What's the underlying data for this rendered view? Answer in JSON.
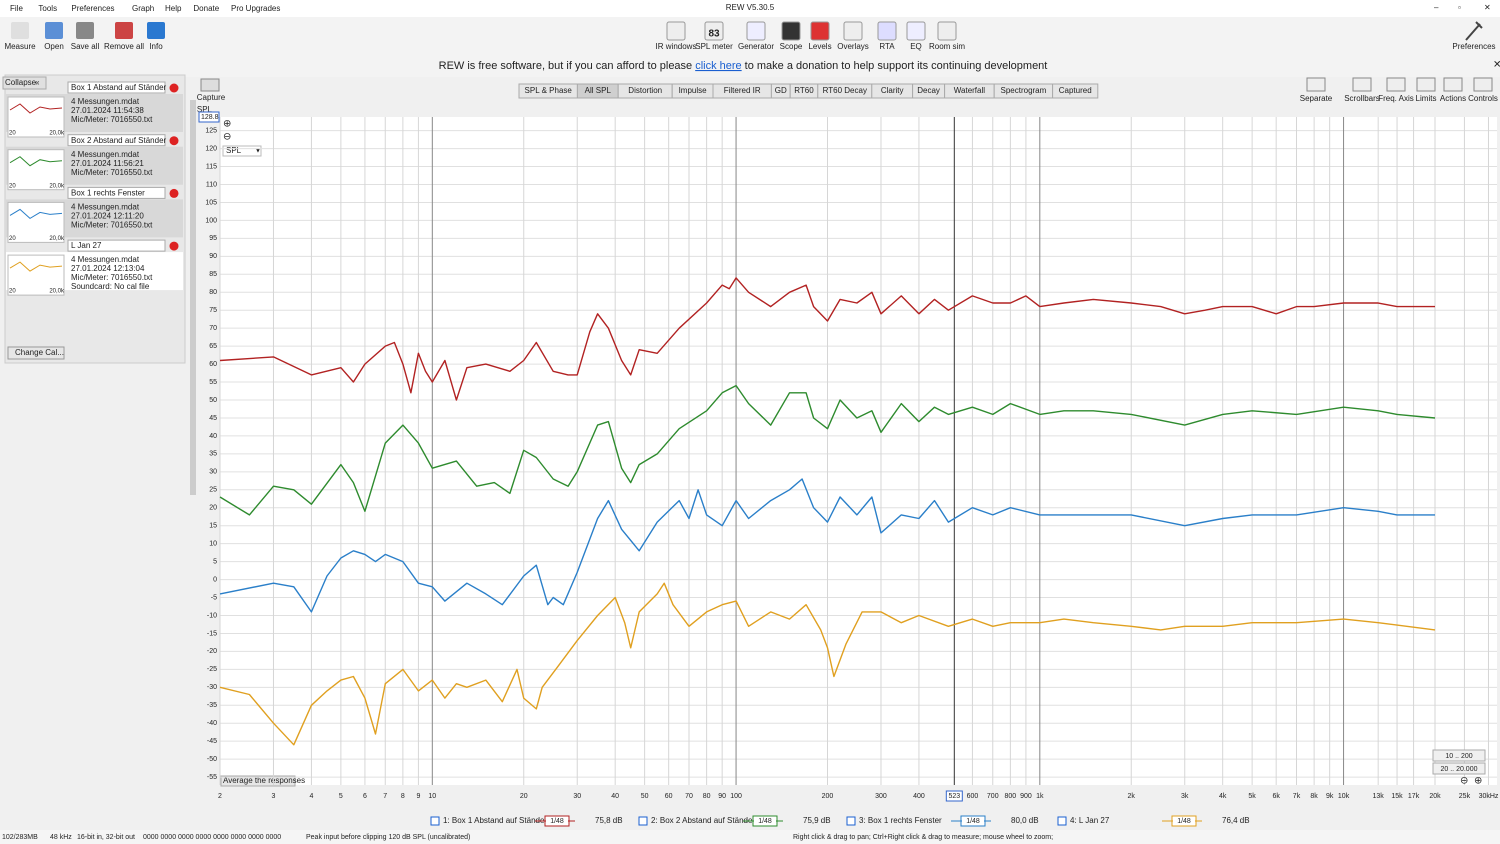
{
  "title": "REW V5.30.5",
  "menu": [
    "File",
    "Tools",
    "Preferences",
    "Graph",
    "Help",
    "Donate",
    "Pro Upgrades"
  ],
  "left_tools": [
    "Measure",
    "Open",
    "Save all",
    "Remove all",
    "Info"
  ],
  "center_tools": [
    "IR windows",
    "SPL meter",
    "Generator",
    "Scope",
    "Levels",
    "Overlays",
    "RTA",
    "EQ",
    "Room sim"
  ],
  "spl_meter_reading": 83,
  "right_tool": "Preferences",
  "banner": {
    "before": "REW is free software, but if you can afford to please",
    "link": "click here",
    "after": "to make a donation to help support its continuing development"
  },
  "collapse": "Collapse",
  "measurements": [
    {
      "name": "Box 1 Abstand auf Ständer",
      "file": "4 Messungen.mdat",
      "date": "27.01.2024 11:54:38",
      "cal": "Mic/Meter: 7016550.txt"
    },
    {
      "name": "Box 2 Abstand auf Ständer",
      "file": "4 Messungen.mdat",
      "date": "27.01.2024 11:56:21",
      "cal": "Mic/Meter: 7016550.txt"
    },
    {
      "name": "Box 1 rechts Fenster",
      "file": "4 Messungen.mdat",
      "date": "27.01.2024 12:11:20",
      "cal": "Mic/Meter: 7016550.txt"
    },
    {
      "name": "L Jan 27",
      "file": "4 Messungen.mdat",
      "date": "27.01.2024 12:13:04",
      "cal": "Mic/Meter: 7016550.txt",
      "extra": "Soundcard: No cal file"
    }
  ],
  "thumb_labels": [
    "20",
    "20,0k"
  ],
  "change_cal": "Change Cal...",
  "capture": "Capture",
  "tabs": [
    "SPL & Phase",
    "All SPL",
    "Distortion",
    "Impulse",
    "Filtered IR",
    "GD",
    "RT60",
    "RT60 Decay",
    "Clarity",
    "Decay",
    "Waterfall",
    "Spectrogram",
    "Captured"
  ],
  "graph_tools": [
    "Separate",
    "Scrollbars",
    "Freq. Axis",
    "Limits",
    "Actions",
    "Controls"
  ],
  "average": "Average the responses",
  "range_buttons": [
    "10 .. 200",
    "20 .. 20.000"
  ],
  "chart_data": {
    "type": "line",
    "y_label": "SPL",
    "log_x": true,
    "grid": true,
    "cursor": {
      "y": 128.8,
      "x": 523
    },
    "xlim": [
      2,
      32000
    ],
    "ylim": [
      -57.2,
      128.8
    ],
    "xticks": [
      2,
      3,
      4,
      5,
      6,
      7,
      8,
      9,
      10,
      20,
      30,
      40,
      50,
      60,
      70,
      80,
      90,
      100,
      200,
      300,
      400,
      600,
      700,
      800,
      900,
      {
        "value": 1000,
        "label": "1k"
      },
      {
        "value": 2000,
        "label": "2k"
      },
      {
        "value": 3000,
        "label": "3k"
      },
      {
        "value": 4000,
        "label": "4k"
      },
      {
        "value": 5000,
        "label": "5k"
      },
      {
        "value": 6000,
        "label": "6k"
      },
      {
        "value": 7000,
        "label": "7k"
      },
      {
        "value": 8000,
        "label": "8k"
      },
      {
        "value": 9000,
        "label": "9k"
      },
      {
        "value": 10000,
        "label": "10k"
      },
      {
        "value": 13000,
        "label": "13k"
      },
      {
        "value": 15000,
        "label": "15k"
      },
      {
        "value": 17000,
        "label": "17k"
      },
      {
        "value": 20000,
        "label": "20k"
      },
      {
        "value": 25000,
        "label": "25k"
      },
      {
        "value": 30000,
        "label": "30kHz"
      }
    ],
    "yticks": [
      -55,
      -50,
      -45,
      -40,
      -35,
      -30,
      -25,
      -20,
      -15,
      -10,
      -5,
      0,
      5,
      10,
      15,
      20,
      25,
      30,
      35,
      40,
      45,
      50,
      55,
      60,
      65,
      70,
      75,
      80,
      85,
      90,
      95,
      100,
      105,
      110,
      115,
      120,
      125
    ],
    "series": [
      {
        "name": "1: Box 1 Abstand auf Ständer",
        "color": "#b22222",
        "smoothing": "1/48",
        "level": "75,8 dB",
        "x": [
          2,
          3,
          4,
          5,
          5.5,
          6,
          7,
          7.5,
          8,
          8.5,
          9,
          9.5,
          10,
          11,
          12,
          13,
          15,
          18,
          20,
          22,
          25,
          28,
          30,
          33,
          35,
          38,
          42,
          45,
          48,
          55,
          65,
          80,
          90,
          95,
          100,
          110,
          130,
          150,
          170,
          180,
          200,
          220,
          250,
          280,
          300,
          350,
          400,
          450,
          500,
          600,
          700,
          800,
          900,
          1000,
          1200,
          1500,
          2000,
          2500,
          3000,
          3500,
          4000,
          5000,
          6000,
          7000,
          8000,
          10000,
          13000,
          15000,
          20000
        ],
        "values": [
          61,
          62,
          57,
          59,
          55,
          60,
          65,
          66,
          60,
          52,
          63,
          58,
          55,
          61,
          50,
          59,
          60,
          58,
          61,
          66,
          58,
          57,
          57,
          69,
          74,
          70,
          61,
          57,
          64,
          63,
          70,
          77,
          82,
          81,
          84,
          80,
          76,
          80,
          82,
          76,
          72,
          78,
          77,
          80,
          74,
          79,
          74,
          78,
          75,
          79,
          77,
          77,
          79,
          76,
          77,
          78,
          77,
          76,
          74,
          75,
          76,
          76,
          74,
          76,
          76,
          77,
          77,
          76,
          76
        ]
      },
      {
        "name": "2: Box 2 Abstand auf Ständer",
        "color": "#2e8b2e",
        "smoothing": "1/48",
        "level": "75,9 dB",
        "x": [
          2,
          2.5,
          3,
          3.5,
          4,
          5,
          5.5,
          6,
          7,
          8,
          9,
          10,
          12,
          14,
          16,
          18,
          20,
          22,
          25,
          28,
          30,
          35,
          38,
          42,
          45,
          48,
          55,
          65,
          80,
          90,
          100,
          110,
          130,
          150,
          170,
          180,
          200,
          220,
          250,
          280,
          300,
          350,
          400,
          450,
          500,
          600,
          700,
          800,
          1000,
          1200,
          1500,
          2000,
          3000,
          4000,
          5000,
          7000,
          10000,
          13000,
          15000,
          20000
        ],
        "values": [
          23,
          18,
          26,
          25,
          21,
          32,
          27,
          19,
          38,
          43,
          38,
          31,
          33,
          26,
          27,
          24,
          36,
          34,
          28,
          26,
          30,
          43,
          44,
          31,
          27,
          32,
          35,
          42,
          47,
          52,
          54,
          49,
          43,
          52,
          52,
          45,
          42,
          50,
          45,
          47,
          41,
          49,
          44,
          48,
          46,
          48,
          46,
          49,
          46,
          47,
          47,
          46,
          43,
          46,
          47,
          46,
          48,
          47,
          46,
          45
        ]
      },
      {
        "name": "3: Box 1 rechts Fenster",
        "color": "#2a7fc9",
        "smoothing": "1/48",
        "level": "80,0 dB",
        "x": [
          2,
          3,
          3.5,
          4,
          4.5,
          5,
          5.5,
          6,
          6.5,
          7,
          8,
          9,
          10,
          11,
          13,
          15,
          17,
          20,
          22,
          24,
          25,
          27,
          30,
          35,
          38,
          42,
          48,
          55,
          65,
          70,
          75,
          80,
          90,
          100,
          110,
          130,
          150,
          165,
          180,
          200,
          220,
          250,
          280,
          300,
          350,
          400,
          450,
          500,
          600,
          700,
          800,
          1000,
          1500,
          2000,
          3000,
          4000,
          5000,
          7000,
          10000,
          13000,
          15000,
          20000
        ],
        "values": [
          -4,
          -1,
          -2,
          -9,
          1,
          6,
          8,
          7,
          5,
          7,
          5,
          -1,
          -2,
          -6,
          -1,
          -4,
          -7,
          1,
          4,
          -7,
          -5,
          -7,
          2,
          17,
          22,
          14,
          8,
          16,
          22,
          17,
          25,
          18,
          15,
          22,
          17,
          22,
          25,
          28,
          20,
          16,
          23,
          18,
          23,
          13,
          18,
          17,
          22,
          16,
          20,
          18,
          20,
          18,
          18,
          18,
          15,
          17,
          18,
          18,
          20,
          19,
          18,
          18
        ]
      },
      {
        "name": "4: L Jan 27",
        "color": "#e0a020",
        "smoothing": "1/48",
        "level": "76,4 dB",
        "x": [
          2,
          2.5,
          3,
          3.5,
          4,
          4.5,
          5,
          5.5,
          6,
          6.5,
          7,
          8,
          9,
          10,
          11,
          12,
          13,
          15,
          17,
          19,
          20,
          22,
          23,
          26,
          30,
          35,
          40,
          43,
          45,
          48,
          55,
          58,
          62,
          70,
          80,
          90,
          100,
          110,
          130,
          150,
          170,
          190,
          200,
          210,
          230,
          260,
          300,
          350,
          400,
          500,
          600,
          700,
          800,
          1000,
          1200,
          1500,
          2000,
          2500,
          3000,
          4000,
          5000,
          7000,
          10000,
          13000,
          20000
        ],
        "values": [
          -30,
          -32,
          -40,
          -46,
          -35,
          -31,
          -28,
          -27,
          -33,
          -43,
          -29,
          -25,
          -31,
          -28,
          -33,
          -29,
          -30,
          -28,
          -34,
          -25,
          -33,
          -36,
          -30,
          -24,
          -17,
          -10,
          -5,
          -12,
          -19,
          -9,
          -4,
          -1,
          -7,
          -13,
          -9,
          -7,
          -6,
          -13,
          -9,
          -11,
          -7,
          -14,
          -19,
          -27,
          -18,
          -9,
          -9,
          -12,
          -10,
          -13,
          -11,
          -13,
          -12,
          -12,
          -11,
          -12,
          -13,
          -14,
          -13,
          -13,
          -12,
          -12,
          -11,
          -12,
          -14
        ]
      }
    ]
  },
  "status": [
    "102/283MB",
    "48 kHz",
    "16-bit in, 32-bit out",
    "0000 0000  0000 0000  0000 0000  0000 0000",
    "Peak input before clipping 120 dB SPL (uncalibrated)",
    "Right click & drag to pan; Ctrl+Right click & drag to measure; mouse wheel to zoom;"
  ]
}
